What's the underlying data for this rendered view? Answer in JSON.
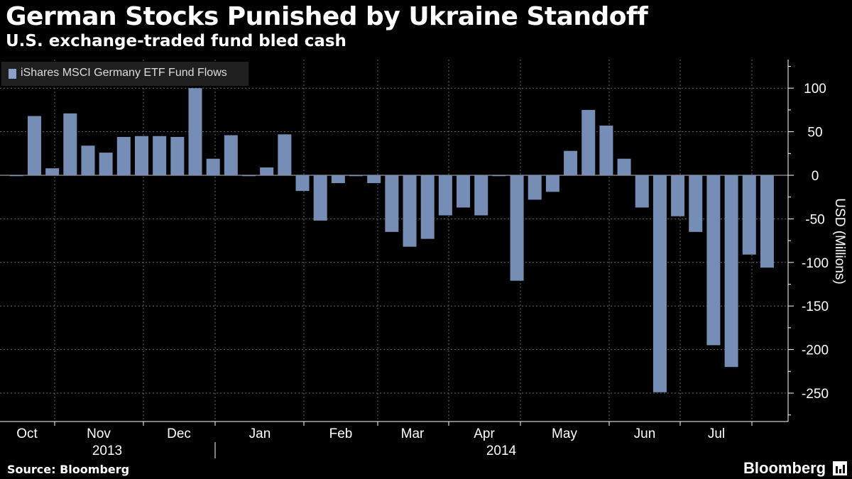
{
  "header": {
    "title": "German Stocks Punished by Ukraine Standoff",
    "subtitle": "U.S. exchange-traded fund bled cash"
  },
  "footer": {
    "source": "Source: Bloomberg",
    "brand": "Bloomberg"
  },
  "colors": {
    "bar": "#768db5",
    "background": "#000000",
    "grid": "#6a6a6a",
    "legend_bg": "#1f1f1f"
  },
  "chart_data": {
    "type": "bar",
    "title": "German Stocks Punished by Ukraine Standoff",
    "subtitle": "U.S. exchange-traded fund bled cash",
    "legend": [
      "iShares MSCI Germany ETF Fund Flows"
    ],
    "legend_position": "top-left",
    "ylabel": "USD (Millions)",
    "xlabel": "",
    "ylim": [
      -280,
      130
    ],
    "yticks": [
      100,
      50,
      0,
      -50,
      -100,
      -150,
      -200,
      -250
    ],
    "grid": true,
    "month_labels": [
      "Oct",
      "Nov",
      "Dec",
      "Jan",
      "Feb",
      "Mar",
      "Apr",
      "May",
      "Jun",
      "Jul"
    ],
    "year_labels": [
      "2013",
      "2014"
    ],
    "series": [
      {
        "name": "iShares MSCI Germany ETF Fund Flows",
        "values": [
          -1,
          68,
          8,
          71,
          34,
          26,
          44,
          45,
          45,
          44,
          100,
          19,
          46,
          -1,
          9,
          47,
          -18,
          -52,
          -9,
          -1,
          -9,
          -65,
          -82,
          -73,
          -46,
          -37,
          -46,
          -1,
          -121,
          -28,
          -19,
          28,
          75,
          57,
          19,
          -37,
          -249,
          -47,
          -65,
          -195,
          -220,
          -91,
          -106
        ]
      }
    ]
  }
}
